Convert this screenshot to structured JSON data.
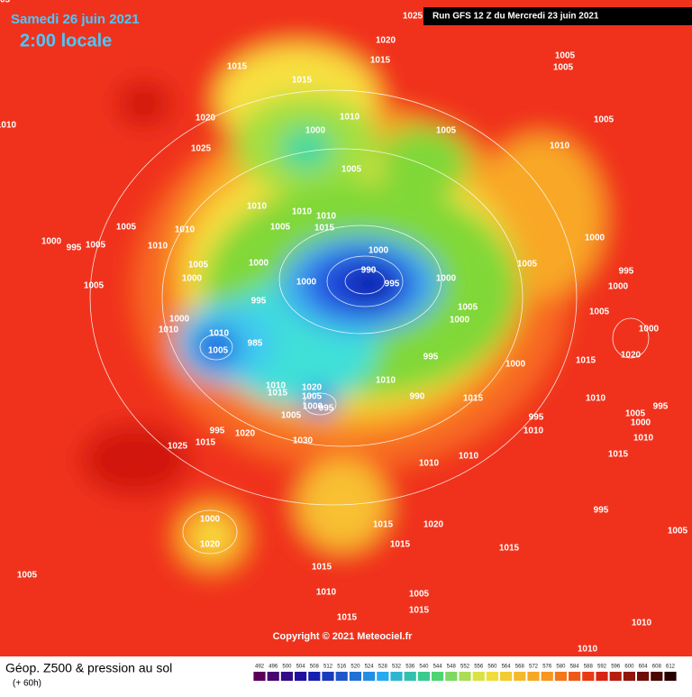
{
  "header": {
    "date": "Samedi 26 juin 2021",
    "time": "2:00 locale",
    "run": "Run GFS 12 Z du Mercredi 23 juin 2021"
  },
  "footer": {
    "title": "Géop. Z500 & pression au sol",
    "lead": "(+ 60h)",
    "copyright": "Copyright © 2021 Meteociel.fr"
  },
  "scale": [
    492,
    496,
    500,
    504,
    508,
    512,
    516,
    520,
    524,
    528,
    532,
    536,
    540,
    544,
    548,
    552,
    556,
    560,
    564,
    568,
    572,
    576,
    580,
    584,
    588,
    592,
    596,
    600,
    604,
    608,
    612
  ],
  "isobar_labels": [
    "1025",
    "1020",
    "1015",
    "1005",
    "1005",
    "1015",
    "1015",
    "1010",
    "1020",
    "1005",
    "1000",
    "1005",
    "1010",
    "1025",
    "1005",
    "1010",
    "1010",
    "1010",
    "1010",
    "1005",
    "1015",
    "1005",
    "1010",
    "1000",
    "995",
    "1005",
    "1010",
    "1000",
    "1000",
    "990",
    "995",
    "1000",
    "1000",
    "1005",
    "995",
    "1005",
    "1000",
    "1000",
    "1005",
    "1000",
    "995",
    "1005",
    "1000",
    "1005",
    "1000",
    "1010",
    "1010",
    "1000",
    "985",
    "1005",
    "995",
    "1020",
    "1000",
    "1015",
    "1010",
    "1010",
    "1015",
    "1020",
    "1005",
    "1000",
    "995",
    "990",
    "1015",
    "1010",
    "1005",
    "995",
    "1000",
    "995",
    "1010",
    "1010",
    "1005",
    "995",
    "1020",
    "1015",
    "1025",
    "1030",
    "1010",
    "1010",
    "1015",
    "995",
    "1000",
    "1020",
    "1015",
    "1020",
    "1015",
    "1015",
    "1005",
    "1005",
    "1015",
    "1010",
    "1005",
    "1015",
    "1015",
    "1010",
    "1010",
    "1005"
  ]
}
